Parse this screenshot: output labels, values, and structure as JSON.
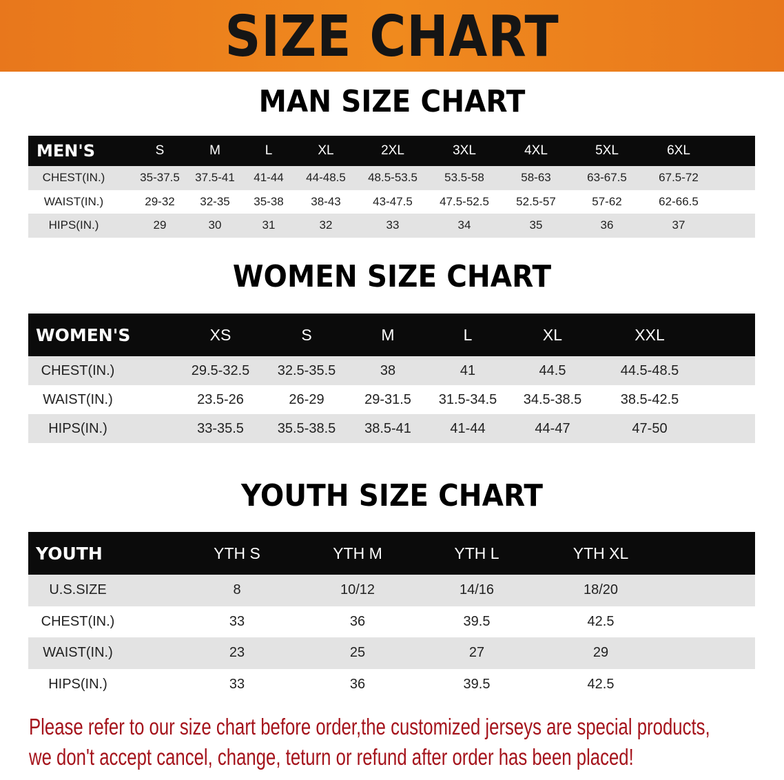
{
  "banner": {
    "title": "SIZE CHART",
    "color": "#ec7d1c"
  },
  "men": {
    "title": "MAN SIZE CHART",
    "header": [
      "MEN'S",
      "S",
      "M",
      "L",
      "XL",
      "2XL",
      "3XL",
      "4XL",
      "5XL",
      "6XL"
    ],
    "rows": [
      [
        "CHEST(IN.)",
        "35-37.5",
        "37.5-41",
        "41-44",
        "44-48.5",
        "48.5-53.5",
        "53.5-58",
        "58-63",
        "63-67.5",
        "67.5-72"
      ],
      [
        "WAIST(IN.)",
        "29-32",
        "32-35",
        "35-38",
        "38-43",
        "43-47.5",
        "47.5-52.5",
        "52.5-57",
        "57-62",
        "62-66.5"
      ],
      [
        "HIPS(IN.)",
        "29",
        "30",
        "31",
        "32",
        "33",
        "34",
        "35",
        "36",
        "37"
      ]
    ]
  },
  "women": {
    "title": "WOMEN SIZE CHART",
    "header": [
      "WOMEN'S",
      "XS",
      "S",
      "M",
      "L",
      "XL",
      "XXL"
    ],
    "rows": [
      [
        "CHEST(IN.)",
        "29.5-32.5",
        "32.5-35.5",
        "38",
        "41",
        "44.5",
        "44.5-48.5"
      ],
      [
        "WAIST(IN.)",
        "23.5-26",
        "26-29",
        "29-31.5",
        "31.5-34.5",
        "34.5-38.5",
        "38.5-42.5"
      ],
      [
        "HIPS(IN.)",
        "33-35.5",
        "35.5-38.5",
        "38.5-41",
        "41-44",
        "44-47",
        "47-50"
      ]
    ]
  },
  "youth": {
    "title": "YOUTH SIZE CHART",
    "header": [
      "YOUTH",
      "YTH S",
      "YTH M",
      "YTH L",
      "YTH XL"
    ],
    "rows": [
      [
        "U.S.SIZE",
        "8",
        "10/12",
        "14/16",
        "18/20"
      ],
      [
        "CHEST(IN.)",
        "33",
        "36",
        "39.5",
        "42.5"
      ],
      [
        "WAIST(IN.)",
        "23",
        "25",
        "27",
        "29"
      ],
      [
        "HIPS(IN.)",
        "33",
        "36",
        "39.5",
        "42.5"
      ]
    ]
  },
  "footer": {
    "line1": "Please refer to our size chart before order,the customized jerseys are special products,",
    "line2": "we don't accept cancel, change, teturn or refund after order has been placed!",
    "color": "#a5141c"
  }
}
